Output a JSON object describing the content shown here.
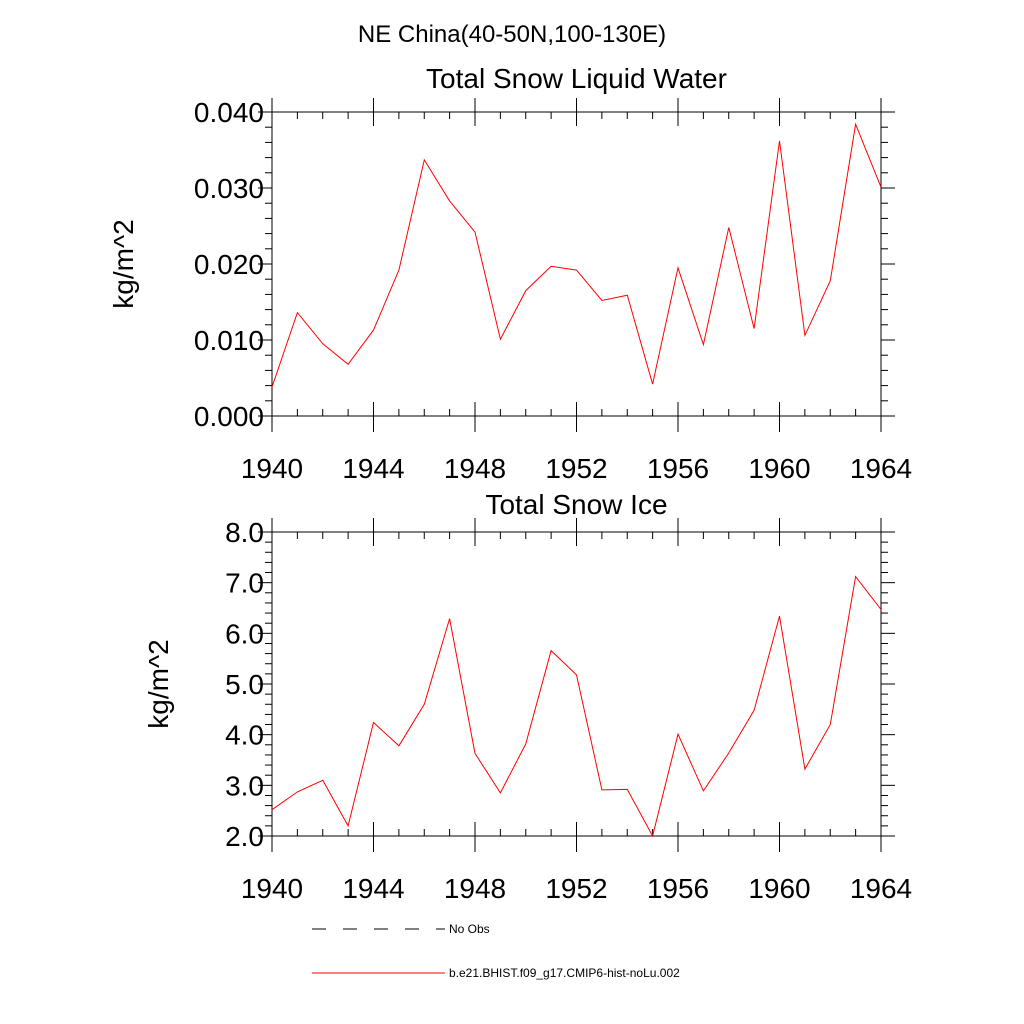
{
  "figure": {
    "title": "NE China(40-50N,100-130E)"
  },
  "chart_data": [
    {
      "type": "line",
      "title": "Total Snow Liquid Water",
      "xlabel": "",
      "ylabel": "kg/m^2",
      "xlim": [
        1940,
        1964
      ],
      "ylim": [
        0.0,
        0.04
      ],
      "x_ticks": [
        "1940",
        "1944",
        "1948",
        "1952",
        "1956",
        "1960",
        "1964"
      ],
      "y_ticks": [
        "0.000",
        "0.010",
        "0.020",
        "0.030",
        "0.040"
      ],
      "grid": false,
      "series": [
        {
          "name": "b.e21.BHIST.f09_g17.CMIP6-hist-noLu.002",
          "color": "#ff0000",
          "x": [
            1940,
            1941,
            1942,
            1943,
            1944,
            1945,
            1946,
            1947,
            1948,
            1949,
            1950,
            1951,
            1952,
            1953,
            1954,
            1955,
            1956,
            1957,
            1958,
            1959,
            1960,
            1961,
            1962,
            1963,
            1964
          ],
          "values": [
            0.0038,
            0.0136,
            0.0095,
            0.0068,
            0.0113,
            0.0192,
            0.0337,
            0.0283,
            0.0242,
            0.0101,
            0.0165,
            0.0197,
            0.0192,
            0.0152,
            0.0159,
            0.0042,
            0.0195,
            0.0094,
            0.0248,
            0.0115,
            0.0362,
            0.0106,
            0.0178,
            0.0384,
            0.0301
          ]
        }
      ]
    },
    {
      "type": "line",
      "title": "Total Snow Ice",
      "xlabel": "",
      "ylabel": "kg/m^2",
      "xlim": [
        1940,
        1964
      ],
      "ylim": [
        2.0,
        8.0
      ],
      "x_ticks": [
        "1940",
        "1944",
        "1948",
        "1952",
        "1956",
        "1960",
        "1964"
      ],
      "y_ticks": [
        "2.0",
        "3.0",
        "4.0",
        "5.0",
        "6.0",
        "7.0",
        "8.0"
      ],
      "grid": false,
      "series": [
        {
          "name": "b.e21.BHIST.f09_g17.CMIP6-hist-noLu.002",
          "color": "#ff0000",
          "x": [
            1940,
            1941,
            1942,
            1943,
            1944,
            1945,
            1946,
            1947,
            1948,
            1949,
            1950,
            1951,
            1952,
            1953,
            1954,
            1955,
            1956,
            1957,
            1958,
            1959,
            1960,
            1961,
            1962,
            1963,
            1964
          ],
          "values": [
            2.52,
            2.87,
            3.1,
            2.2,
            4.24,
            3.78,
            4.6,
            6.29,
            3.63,
            2.85,
            3.82,
            5.66,
            5.18,
            2.91,
            2.92,
            2.0,
            4.01,
            2.89,
            3.64,
            4.48,
            6.34,
            3.32,
            4.2,
            7.12,
            6.47
          ]
        }
      ]
    }
  ],
  "legend": {
    "placement": "bottom",
    "items": [
      {
        "label": "No Obs",
        "color": "#000000",
        "style": "dashed"
      },
      {
        "label": "b.e21.BHIST.f09_g17.CMIP6-hist-noLu.002",
        "color": "#ff0000",
        "style": "solid"
      }
    ]
  }
}
